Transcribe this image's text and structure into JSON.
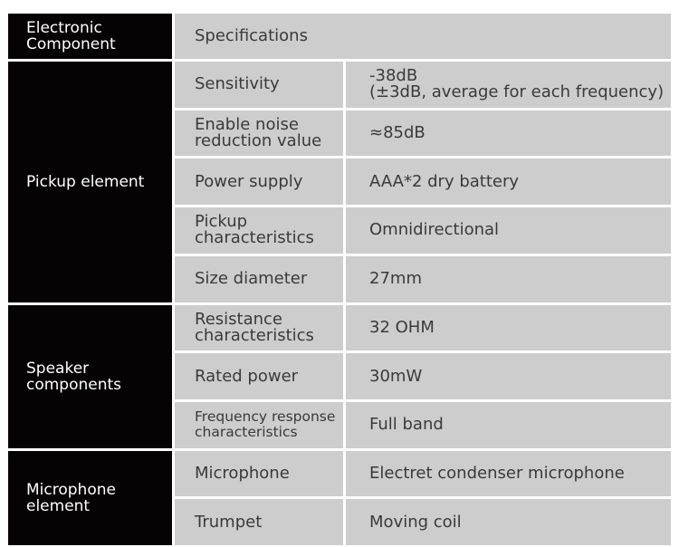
{
  "header": {
    "component": "Electronic\nComponent",
    "specifications": "Specifications"
  },
  "groups": [
    {
      "name": "Pickup element",
      "rows": [
        {
          "label": "Sensitivity",
          "value": "-38dB\n(±3dB, average for each frequency)"
        },
        {
          "label": "Enable noise\nreduction value",
          "value": "≈85dB"
        },
        {
          "label": "Power supply",
          "value": "AAA*2 dry battery"
        },
        {
          "label": "Pickup\ncharacteristics",
          "value": "Omnidirectional"
        },
        {
          "label": "Size diameter",
          "value": "27mm"
        }
      ]
    },
    {
      "name": "Speaker\ncomponents",
      "rows": [
        {
          "label": "Resistance\ncharacteristics",
          "value": "32 OHM"
        },
        {
          "label": "Rated power",
          "value": "30mW"
        },
        {
          "label": "Frequency response\ncharacteristics",
          "value": "Full band"
        }
      ]
    },
    {
      "name": "Microphone\nelement",
      "rows": [
        {
          "label": "Microphone",
          "value": "Electret condenser microphone"
        },
        {
          "label": "Trumpet",
          "value": "Moving coil"
        }
      ]
    }
  ],
  "colors": {
    "dark_cell": "#050303",
    "light_cell": "#cdcdcd",
    "text": "#3a3a3a"
  }
}
